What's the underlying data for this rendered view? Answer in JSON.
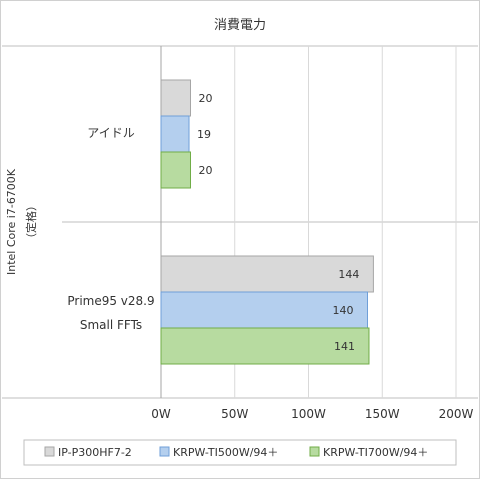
{
  "chart_data": {
    "type": "bar",
    "orientation": "horizontal",
    "title": "消費電力",
    "group_label": "Intel Core i7-6700K\n（定格）",
    "categories": [
      "アイドル",
      "Prime95 v28.9\nSmall FFTs"
    ],
    "series": [
      {
        "name": "IP-P300HF7-2",
        "color": "#d9d9d9",
        "stroke": "#a6a6a6",
        "values": [
          20,
          144
        ]
      },
      {
        "name": "KRPW-TI500W/94＋",
        "color": "#b4cfee",
        "stroke": "#6f9fd8",
        "values": [
          19,
          140
        ]
      },
      {
        "name": "KRPW-TI700W/94＋",
        "color": "#b7dba0",
        "stroke": "#70ad47",
        "values": [
          20,
          141
        ]
      }
    ],
    "x_ticks": [
      "0W",
      "50W",
      "100W",
      "150W",
      "200W"
    ],
    "xlim": [
      0,
      200
    ],
    "grid": true,
    "legend_position": "bottom",
    "data_labels": true
  }
}
